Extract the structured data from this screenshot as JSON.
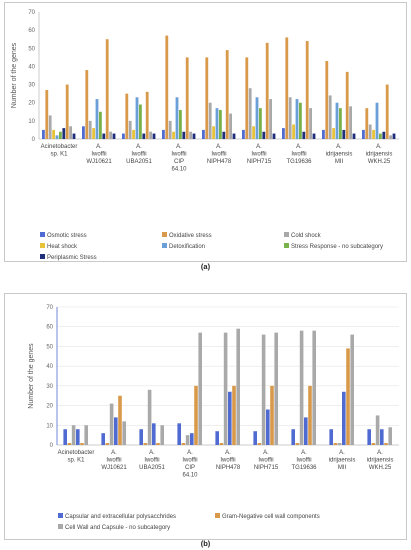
{
  "chart_data": [
    {
      "panel_label": "(a)",
      "type": "bar",
      "ylabel": "Number of the genes",
      "xlabel": "",
      "ylim": [
        0,
        70
      ],
      "yticks": [
        0,
        10,
        20,
        30,
        40,
        50,
        60,
        70
      ],
      "grid": false,
      "legend_position": "bottom",
      "categories": [
        [
          "Acinetobacter",
          "sp. K1"
        ],
        [
          "A.",
          "Iwoffii",
          "WJ10621"
        ],
        [
          "A.",
          "Iwoffii",
          "UBA2051"
        ],
        [
          "A.",
          "Iwoffii",
          "CIP",
          "64.10"
        ],
        [
          "A.",
          "Iwoffii",
          "NIPH478"
        ],
        [
          "A.",
          "Iwoffii",
          "NIPH715"
        ],
        [
          "A.",
          "Iwoffii",
          "TG19636"
        ],
        [
          "A.",
          "idrijaensis",
          "MII"
        ],
        [
          "A.",
          "idrijaensis",
          "WKH.25"
        ]
      ],
      "series": [
        {
          "name": "Osmotic stress",
          "color": "#4f6bd1",
          "values": [
            5,
            7,
            3,
            5,
            5,
            5,
            6,
            5,
            5
          ]
        },
        {
          "name": "Oxidative stress",
          "color": "#d89a4a",
          "values": [
            27,
            38,
            25,
            57,
            45,
            45,
            56,
            43,
            17
          ]
        },
        {
          "name": "Cold shock",
          "color": "#a9a9a9",
          "values": [
            13,
            10,
            10,
            10,
            20,
            28,
            23,
            24,
            8
          ]
        },
        {
          "name": "Heat shock",
          "color": "#e7c23a",
          "values": [
            5,
            6,
            5,
            4,
            7,
            7,
            8,
            6,
            5
          ]
        },
        {
          "name": "Detoxification",
          "color": "#6a9fd8",
          "values": [
            2,
            22,
            23,
            23,
            17,
            23,
            22,
            20,
            20
          ]
        },
        {
          "name": "Stress Response - no subcategory",
          "color": "#79b24a",
          "values": [
            4,
            15,
            19,
            16,
            16,
            17,
            20,
            17,
            3
          ]
        },
        {
          "name": "Periplasmic Stress",
          "color": "#1f2f7a",
          "values": [
            6,
            3,
            3,
            4,
            4,
            4,
            4,
            5,
            4
          ]
        }
      ],
      "extra_bars": {
        "description": "second group of taller orange bars drawn in original",
        "values": [
          30,
          55,
          26,
          45,
          49,
          53,
          54,
          37,
          30
        ]
      }
    },
    {
      "panel_label": "(b)",
      "type": "bar",
      "ylabel": "Number of the genes",
      "xlabel": "",
      "ylim": [
        0,
        70
      ],
      "yticks": [
        0,
        10,
        20,
        30,
        40,
        50,
        60,
        70
      ],
      "grid": true,
      "legend_position": "bottom",
      "categories": [
        [
          "Acinetobacter",
          "sp. K1"
        ],
        [
          "A.",
          "Iwoffii",
          "WJ10621"
        ],
        [
          "A.",
          "Iwoffii",
          "UBA2051"
        ],
        [
          "A.",
          "Iwoffii",
          "CIP",
          "64.10"
        ],
        [
          "A.",
          "Iwoffii",
          "NIPH478"
        ],
        [
          "A.",
          "Iwoffii",
          "NIPH715"
        ],
        [
          "A.",
          "Iwoffii",
          "TG19636"
        ],
        [
          "A.",
          "idrijaensis",
          "MII"
        ],
        [
          "A.",
          "idrijaensis",
          "WKH.25"
        ]
      ],
      "series": [
        {
          "name": "Capsular and extracellular polysacchrides",
          "color": "#4f6bd1",
          "values": [
            8,
            14,
            11,
            6,
            27,
            18,
            14,
            27,
            8
          ]
        },
        {
          "name": "Gram-Negative cell wall components",
          "color": "#d89a4a",
          "values": [
            1,
            25,
            1,
            30,
            30,
            30,
            30,
            49,
            1
          ]
        },
        {
          "name": "Cell Wall and Capsule - no subcategory",
          "color": "#a9a9a9",
          "values": [
            10,
            12,
            10,
            57,
            59,
            57,
            58,
            56,
            9
          ]
        }
      ],
      "extra_bars": {
        "description": "first blue and grey bar pairs per group in original",
        "values_blue": [
          8,
          6,
          8,
          11,
          7,
          7,
          8,
          8,
          8
        ],
        "values_grey": [
          10,
          21,
          28,
          5,
          57,
          56,
          58,
          1,
          15
        ]
      }
    }
  ]
}
